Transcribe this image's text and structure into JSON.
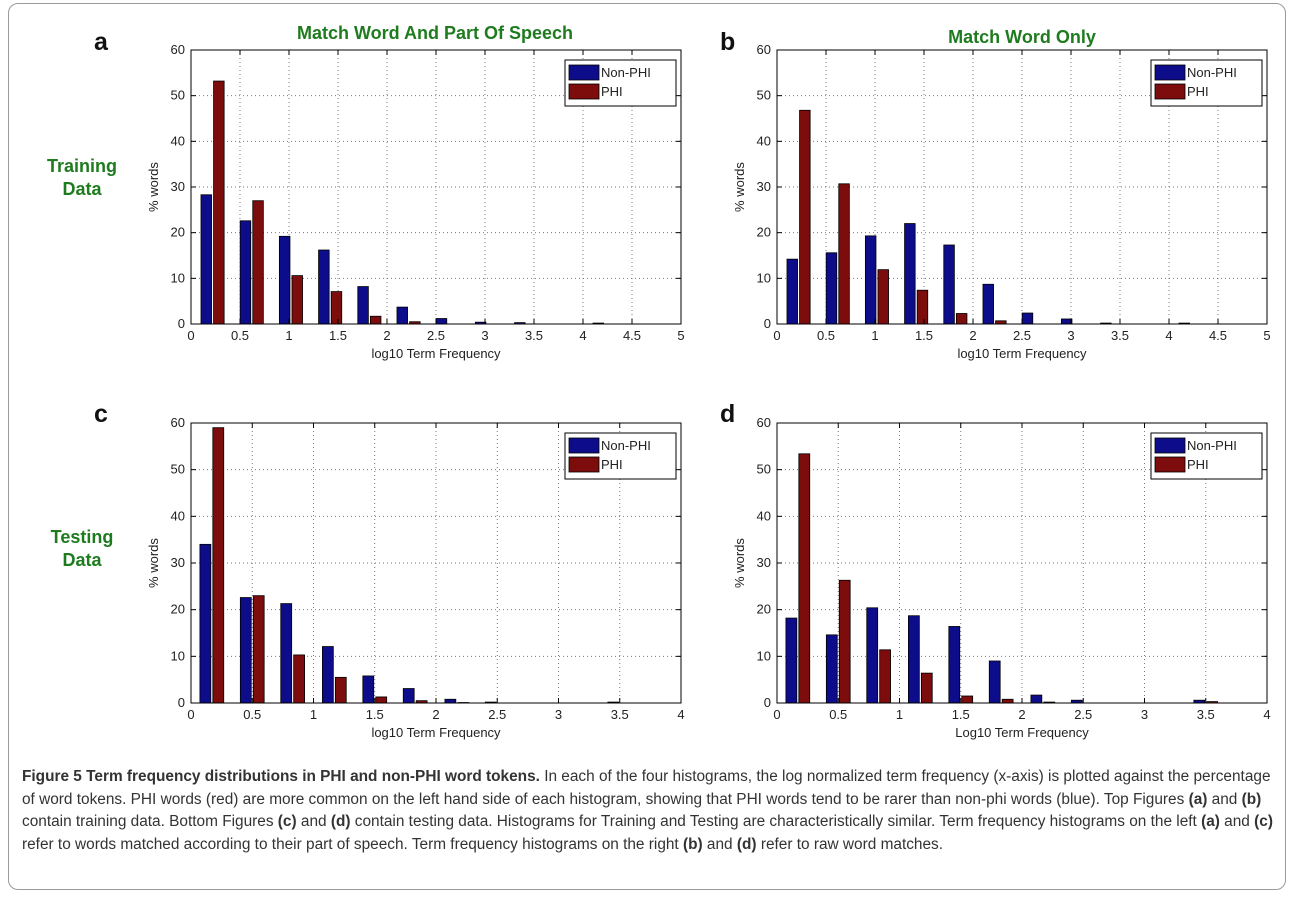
{
  "figure": {
    "col_titles": [
      "Match Word And Part Of Speech",
      "Match Word Only"
    ],
    "row_labels": [
      {
        "line1": "Training",
        "line2": "Data"
      },
      {
        "line1": "Testing",
        "line2": "Data"
      }
    ]
  },
  "colors": {
    "non_phi": "#0d0d8c",
    "phi": "#7d0c0c",
    "title_green": "#1e7b1e"
  },
  "caption": {
    "title": "Figure 5 Term frequency distributions in PHI and non-PHI word tokens.",
    "p1": " In each of the four histograms, the log normalized term frequency (x-axis) is plotted against the percentage of word tokens. PHI words (red) are more common on the left hand side of each histogram, showing that PHI words tend to be rarer than non-phi words (blue). Top Figures ",
    "a": "(a)",
    "and1": " and ",
    "b": "(b)",
    "p2": " contain training data. Bottom Figures ",
    "c": "(c)",
    "and2": " and ",
    "d": "(d)",
    "p3": " contain testing data. Histograms for Training and Testing are characteristically similar. Term frequency histograms on the left ",
    "a2": "(a)",
    "and3": " and ",
    "c2": "(c)",
    "p4": " refer to words matched according to their part of speech. Term frequency histograms on the right ",
    "b2": "(b)",
    "and4": " and ",
    "d2": "(d)",
    "p5": " refer to raw word matches."
  },
  "chart_data": [
    {
      "panel": "a",
      "type": "bar",
      "xlabel": "log10 Term Frequency",
      "ylabel": "% words",
      "xlim": [
        0,
        5
      ],
      "ylim": [
        0,
        60
      ],
      "xticks": [
        0,
        0.5,
        1,
        1.5,
        2,
        2.5,
        3,
        3.5,
        4,
        4.5,
        5
      ],
      "xtick_labels": [
        "0",
        "0.5",
        "1",
        "1.5",
        "2",
        "2.5",
        "3",
        "3.5",
        "4",
        "4.5",
        "5"
      ],
      "yticks": [
        0,
        10,
        20,
        30,
        40,
        50,
        60
      ],
      "grid": true,
      "legend": "top-right",
      "x": [
        0.22,
        0.62,
        1.02,
        1.42,
        1.82,
        2.22,
        2.62,
        3.02,
        3.42,
        3.82,
        4.22
      ],
      "series": [
        {
          "name": "Non-PHI",
          "values": [
            28.3,
            22.6,
            19.2,
            16.2,
            8.2,
            3.7,
            1.2,
            0.4,
            0.3,
            0.0,
            0.2
          ]
        },
        {
          "name": "PHI",
          "values": [
            53.2,
            27.0,
            10.6,
            7.1,
            1.7,
            0.5,
            0.0,
            0.0,
            0.0,
            0.0,
            0.0
          ]
        }
      ]
    },
    {
      "panel": "b",
      "type": "bar",
      "xlabel": "log10 Term Frequency",
      "ylabel": "% words",
      "xlim": [
        0,
        5
      ],
      "ylim": [
        0,
        60
      ],
      "xticks": [
        0,
        0.5,
        1,
        1.5,
        2,
        2.5,
        3,
        3.5,
        4,
        4.5,
        5
      ],
      "xtick_labels": [
        "0",
        "0.5",
        "1",
        "1.5",
        "2",
        "2.5",
        "3",
        "3.5",
        "4",
        "4.5",
        "5"
      ],
      "yticks": [
        0,
        10,
        20,
        30,
        40,
        50,
        60
      ],
      "grid": true,
      "legend": "top-right",
      "x": [
        0.22,
        0.62,
        1.02,
        1.42,
        1.82,
        2.22,
        2.62,
        3.02,
        3.42,
        3.82,
        4.22
      ],
      "series": [
        {
          "name": "Non-PHI",
          "values": [
            14.2,
            15.6,
            19.3,
            22.0,
            17.3,
            8.7,
            2.4,
            1.1,
            0.2,
            0.0,
            0.2
          ]
        },
        {
          "name": "PHI",
          "values": [
            46.8,
            30.7,
            11.9,
            7.4,
            2.3,
            0.7,
            0.0,
            0.0,
            0.0,
            0.0,
            0.0
          ]
        }
      ]
    },
    {
      "panel": "c",
      "type": "bar",
      "xlabel": "log10 Term Frequency",
      "ylabel": "% words",
      "xlim": [
        0,
        4
      ],
      "ylim": [
        0,
        60
      ],
      "xticks": [
        0,
        0.5,
        1,
        1.5,
        2,
        2.5,
        3,
        3.5,
        4
      ],
      "xtick_labels": [
        "0",
        "0.5",
        "1",
        "1.5",
        "2",
        "2.5",
        "3",
        "3.5",
        "4"
      ],
      "yticks": [
        0,
        10,
        20,
        30,
        40,
        50,
        60
      ],
      "grid": true,
      "legend": "top-right",
      "x": [
        0.17,
        0.5,
        0.83,
        1.17,
        1.5,
        1.83,
        2.17,
        2.5,
        2.83,
        3.17,
        3.5,
        3.83
      ],
      "series": [
        {
          "name": "Non-PHI",
          "values": [
            34.0,
            22.6,
            21.3,
            12.1,
            5.8,
            3.1,
            0.8,
            0.2,
            0.0,
            0.0,
            0.2,
            0.0
          ]
        },
        {
          "name": "PHI",
          "values": [
            59.0,
            23.0,
            10.3,
            5.5,
            1.3,
            0.5,
            0.1,
            0.0,
            0.0,
            0.0,
            0.0,
            0.0
          ]
        }
      ]
    },
    {
      "panel": "d",
      "type": "bar",
      "xlabel": "Log10 Term Frequency",
      "ylabel": "% words",
      "xlim": [
        0,
        4
      ],
      "ylim": [
        0,
        60
      ],
      "xticks": [
        0,
        0.5,
        1,
        1.5,
        2,
        2.5,
        3,
        3.5,
        4
      ],
      "xtick_labels": [
        "0",
        "0.5",
        "1",
        "1.5",
        "2",
        "2.5",
        "3",
        "3.5",
        "4"
      ],
      "yticks": [
        0,
        10,
        20,
        30,
        40,
        50,
        60
      ],
      "grid": true,
      "legend": "top-right",
      "x": [
        0.17,
        0.5,
        0.83,
        1.17,
        1.5,
        1.83,
        2.17,
        2.5,
        2.83,
        3.17,
        3.5,
        3.83
      ],
      "series": [
        {
          "name": "Non-PHI",
          "values": [
            18.2,
            14.6,
            20.4,
            18.7,
            16.4,
            9.0,
            1.7,
            0.6,
            0.0,
            0.0,
            0.6,
            0.0
          ]
        },
        {
          "name": "PHI",
          "values": [
            53.4,
            26.3,
            11.4,
            6.4,
            1.5,
            0.8,
            0.2,
            0.0,
            0.0,
            0.0,
            0.3,
            0.0
          ]
        }
      ]
    }
  ]
}
